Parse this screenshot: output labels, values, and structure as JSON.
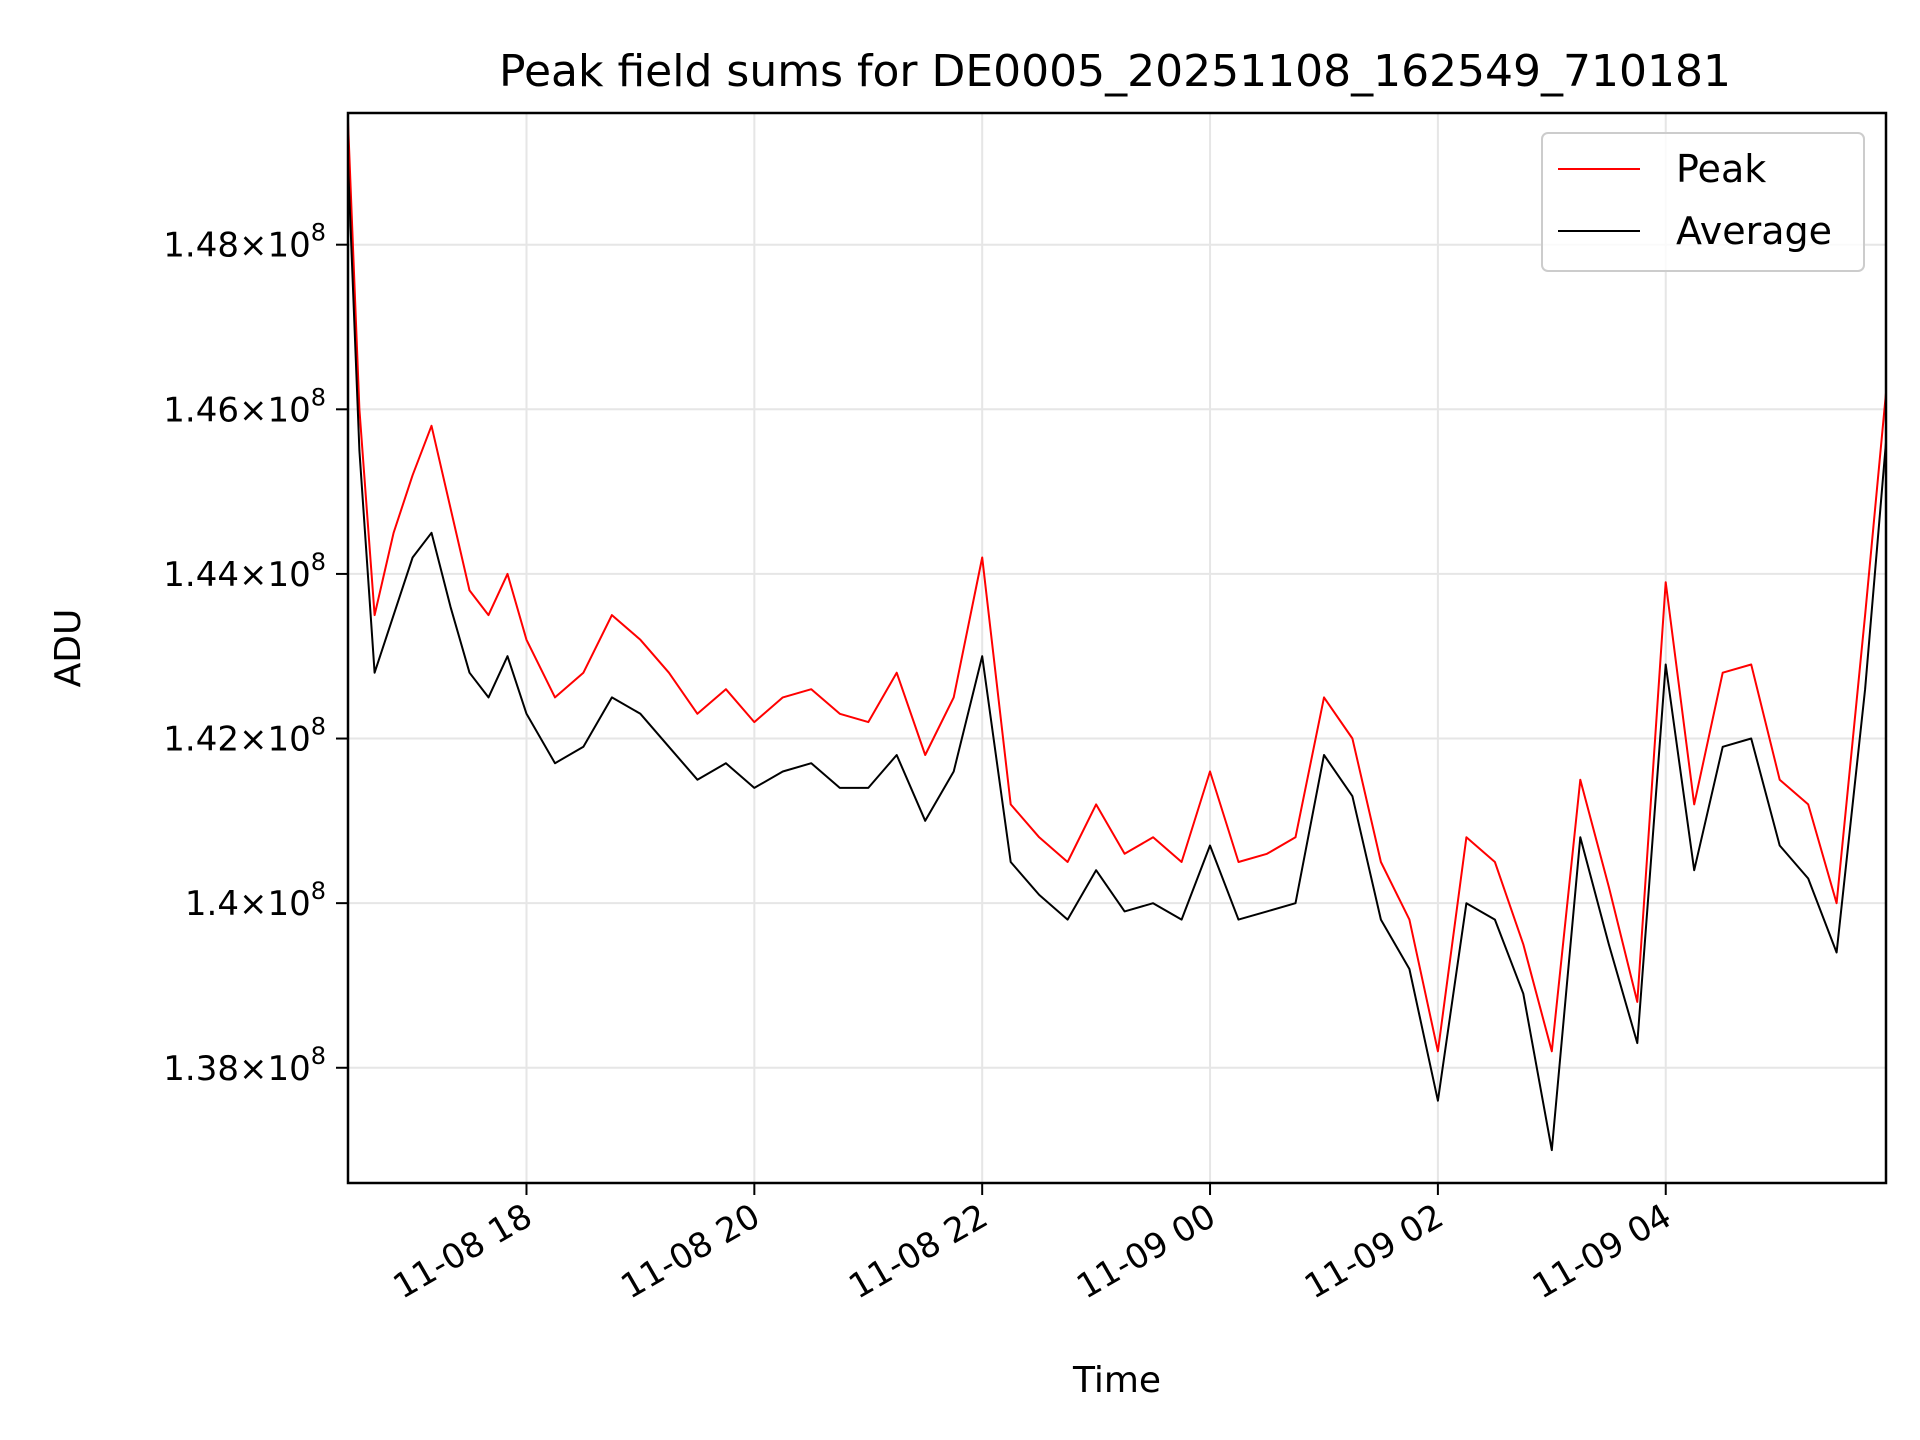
{
  "chart_data": {
    "type": "line",
    "title": "Peak field sums for DE0005_20251108_162549_710181",
    "xlabel": "Time",
    "ylabel": "ADU",
    "xlim": [
      "2025-11-08 16:26",
      "2025-11-09 05:56"
    ],
    "ylim": [
      136600000,
      149600000
    ],
    "grid": true,
    "legend": "upper-right",
    "x_ticks": [
      {
        "label": "11-08 18",
        "value": "2025-11-08 18:00"
      },
      {
        "label": "11-08 20",
        "value": "2025-11-08 20:00"
      },
      {
        "label": "11-08 22",
        "value": "2025-11-08 22:00"
      },
      {
        "label": "11-09 00",
        "value": "2025-11-09 00:00"
      },
      {
        "label": "11-09 02",
        "value": "2025-11-09 02:00"
      },
      {
        "label": "11-09 04",
        "value": "2025-11-09 04:00"
      }
    ],
    "y_ticks": [
      {
        "mantissa": "1.38",
        "exponent": "8",
        "value": 138000000
      },
      {
        "mantissa": "1.4",
        "exponent": "8",
        "value": 140000000
      },
      {
        "mantissa": "1.42",
        "exponent": "8",
        "value": 142000000
      },
      {
        "mantissa": "1.44",
        "exponent": "8",
        "value": 144000000
      },
      {
        "mantissa": "1.46",
        "exponent": "8",
        "value": 146000000
      },
      {
        "mantissa": "1.48",
        "exponent": "8",
        "value": 148000000
      }
    ],
    "series": [
      {
        "name": "Peak",
        "color": "#ff0000",
        "x": [
          "2025-11-08 16:26",
          "2025-11-08 16:32",
          "2025-11-08 16:40",
          "2025-11-08 16:50",
          "2025-11-08 17:00",
          "2025-11-08 17:10",
          "2025-11-08 17:20",
          "2025-11-08 17:30",
          "2025-11-08 17:40",
          "2025-11-08 17:50",
          "2025-11-08 18:00",
          "2025-11-08 18:15",
          "2025-11-08 18:30",
          "2025-11-08 18:45",
          "2025-11-08 19:00",
          "2025-11-08 19:15",
          "2025-11-08 19:30",
          "2025-11-08 19:45",
          "2025-11-08 20:00",
          "2025-11-08 20:15",
          "2025-11-08 20:30",
          "2025-11-08 20:45",
          "2025-11-08 21:00",
          "2025-11-08 21:15",
          "2025-11-08 21:30",
          "2025-11-08 21:45",
          "2025-11-08 22:00",
          "2025-11-08 22:15",
          "2025-11-08 22:30",
          "2025-11-08 22:45",
          "2025-11-08 23:00",
          "2025-11-08 23:15",
          "2025-11-08 23:30",
          "2025-11-08 23:45",
          "2025-11-09 00:00",
          "2025-11-09 00:15",
          "2025-11-09 00:30",
          "2025-11-09 00:45",
          "2025-11-09 01:00",
          "2025-11-09 01:15",
          "2025-11-09 01:30",
          "2025-11-09 01:45",
          "2025-11-09 02:00",
          "2025-11-09 02:15",
          "2025-11-09 02:30",
          "2025-11-09 02:45",
          "2025-11-09 03:00",
          "2025-11-09 03:15",
          "2025-11-09 03:30",
          "2025-11-09 03:45",
          "2025-11-09 04:00",
          "2025-11-09 04:15",
          "2025-11-09 04:30",
          "2025-11-09 04:45",
          "2025-11-09 05:00",
          "2025-11-09 05:15",
          "2025-11-09 05:30",
          "2025-11-09 05:45",
          "2025-11-09 05:56"
        ],
        "values": [
          149500000,
          146000000,
          143500000,
          144500000,
          145200000,
          145800000,
          144800000,
          143800000,
          143500000,
          144000000,
          143200000,
          142500000,
          142800000,
          143500000,
          143200000,
          142800000,
          142300000,
          142600000,
          142200000,
          142500000,
          142600000,
          142300000,
          142200000,
          142800000,
          141800000,
          142500000,
          144200000,
          141200000,
          140800000,
          140500000,
          141200000,
          140600000,
          140800000,
          140500000,
          141600000,
          140500000,
          140600000,
          140800000,
          142500000,
          142000000,
          140500000,
          139800000,
          138200000,
          140800000,
          140500000,
          139500000,
          138200000,
          141500000,
          140200000,
          138800000,
          143900000,
          141200000,
          142800000,
          142900000,
          141500000,
          141200000,
          140000000,
          143500000,
          146200000
        ]
      },
      {
        "name": "Average",
        "color": "#000000",
        "x": [
          "2025-11-08 16:26",
          "2025-11-08 16:32",
          "2025-11-08 16:40",
          "2025-11-08 16:50",
          "2025-11-08 17:00",
          "2025-11-08 17:10",
          "2025-11-08 17:20",
          "2025-11-08 17:30",
          "2025-11-08 17:40",
          "2025-11-08 17:50",
          "2025-11-08 18:00",
          "2025-11-08 18:15",
          "2025-11-08 18:30",
          "2025-11-08 18:45",
          "2025-11-08 19:00",
          "2025-11-08 19:15",
          "2025-11-08 19:30",
          "2025-11-08 19:45",
          "2025-11-08 20:00",
          "2025-11-08 20:15",
          "2025-11-08 20:30",
          "2025-11-08 20:45",
          "2025-11-08 21:00",
          "2025-11-08 21:15",
          "2025-11-08 21:30",
          "2025-11-08 21:45",
          "2025-11-08 22:00",
          "2025-11-08 22:15",
          "2025-11-08 22:30",
          "2025-11-08 22:45",
          "2025-11-08 23:00",
          "2025-11-08 23:15",
          "2025-11-08 23:30",
          "2025-11-08 23:45",
          "2025-11-09 00:00",
          "2025-11-09 00:15",
          "2025-11-09 00:30",
          "2025-11-09 00:45",
          "2025-11-09 01:00",
          "2025-11-09 01:15",
          "2025-11-09 01:30",
          "2025-11-09 01:45",
          "2025-11-09 02:00",
          "2025-11-09 02:15",
          "2025-11-09 02:30",
          "2025-11-09 02:45",
          "2025-11-09 03:00",
          "2025-11-09 03:15",
          "2025-11-09 03:30",
          "2025-11-09 03:45",
          "2025-11-09 04:00",
          "2025-11-09 04:15",
          "2025-11-09 04:30",
          "2025-11-09 04:45",
          "2025-11-09 05:00",
          "2025-11-09 05:15",
          "2025-11-09 05:30",
          "2025-11-09 05:45",
          "2025-11-09 05:56"
        ],
        "values": [
          149000000,
          145500000,
          142800000,
          143500000,
          144200000,
          144500000,
          143600000,
          142800000,
          142500000,
          143000000,
          142300000,
          141700000,
          141900000,
          142500000,
          142300000,
          141900000,
          141500000,
          141700000,
          141400000,
          141600000,
          141700000,
          141400000,
          141400000,
          141800000,
          141000000,
          141600000,
          143000000,
          140500000,
          140100000,
          139800000,
          140400000,
          139900000,
          140000000,
          139800000,
          140700000,
          139800000,
          139900000,
          140000000,
          141800000,
          141300000,
          139800000,
          139200000,
          137600000,
          140000000,
          139800000,
          138900000,
          137000000,
          140800000,
          139500000,
          138300000,
          142900000,
          140400000,
          141900000,
          142000000,
          140700000,
          140300000,
          139400000,
          142600000,
          145600000
        ]
      }
    ]
  }
}
